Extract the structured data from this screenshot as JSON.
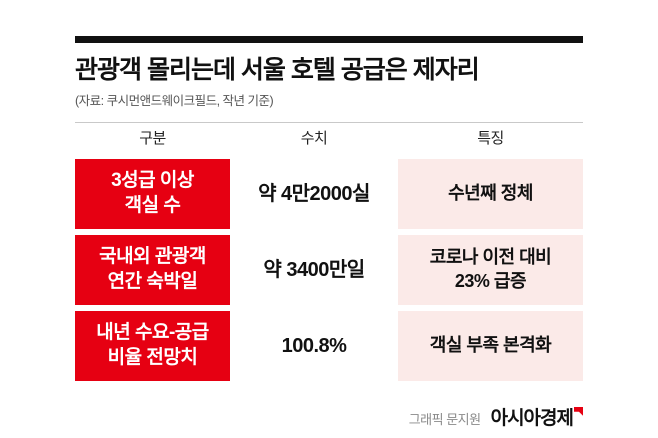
{
  "title": "관광객 몰리는데 서울 호텔 공급은 제자리",
  "source": "(자료: 쿠시먼앤드웨이크필드, 작년 기준)",
  "table": {
    "headers": [
      "구분",
      "수치",
      "특징"
    ],
    "rows": [
      {
        "label": "3성급 이상\n객실 수",
        "value": "약 4만2000실",
        "note": "수년째 정체"
      },
      {
        "label": "국내외 관광객\n연간 숙박일",
        "value": "약 3400만일",
        "note": "코로나 이전 대비\n23% 급증"
      },
      {
        "label": "내년 수요-공급\n비율 전망치",
        "value": "100.8%",
        "note": "객실 부족 본격화"
      }
    ]
  },
  "footer": {
    "credit": "그래픽 문지원",
    "brand": "아시아경제"
  },
  "colors": {
    "accent_red": "#e60012",
    "note_pink": "#fbeae8",
    "rule_black": "#111111"
  },
  "chart_data": {
    "type": "table",
    "title": "관광객 몰리는데 서울 호텔 공급은 제자리",
    "source": "쿠시먼앤드웨이크필드, 작년 기준",
    "columns": [
      "구분",
      "수치",
      "특징"
    ],
    "rows": [
      [
        "3성급 이상 객실 수",
        "약 4만2000실",
        "수년째 정체"
      ],
      [
        "국내외 관광객 연간 숙박일",
        "약 3400만일",
        "코로나 이전 대비 23% 급증"
      ],
      [
        "내년 수요-공급 비율 전망치",
        "100.8%",
        "객실 부족 본격화"
      ]
    ]
  }
}
